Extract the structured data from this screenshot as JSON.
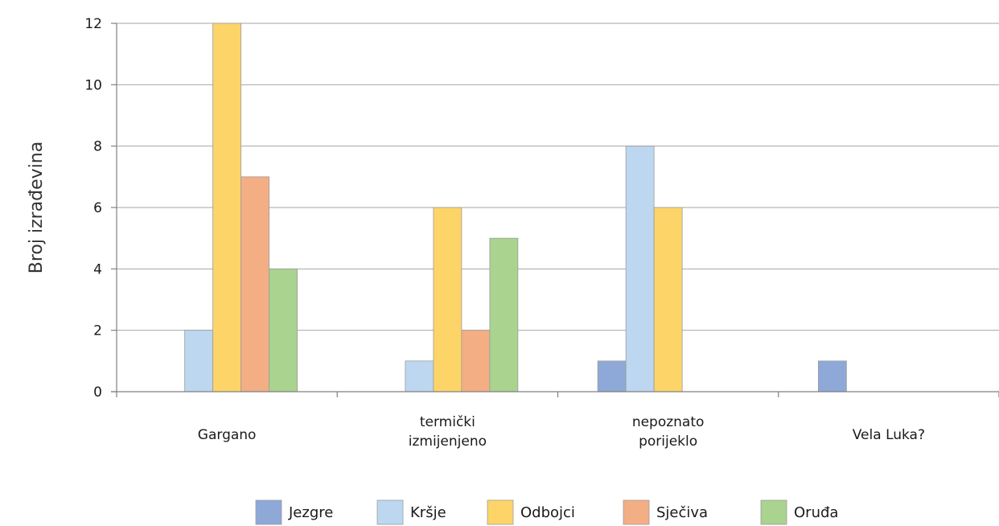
{
  "chart_data": {
    "type": "bar",
    "title": "",
    "xlabel": "",
    "ylabel": "Broj izrađevina",
    "ylim": [
      0,
      12
    ],
    "yticks": [
      0,
      2,
      4,
      6,
      8,
      10,
      12
    ],
    "grid": true,
    "legend_position": "bottom",
    "categories": [
      [
        "Gargano"
      ],
      [
        "termički",
        "izmijenjeno"
      ],
      [
        "nepoznato",
        "porijeklo"
      ],
      [
        "Vela Luka?"
      ]
    ],
    "series": [
      {
        "name": "Jezgre",
        "color": "#8ea9d8",
        "values": [
          0,
          0,
          1,
          1
        ]
      },
      {
        "name": "Kršje",
        "color": "#bcd7ef",
        "values": [
          2,
          1,
          8,
          0
        ]
      },
      {
        "name": "Odbojci",
        "color": "#fdd468",
        "values": [
          12,
          6,
          6,
          0
        ]
      },
      {
        "name": "Sječiva",
        "color": "#f4ae84",
        "values": [
          7,
          2,
          0,
          0
        ]
      },
      {
        "name": "Oruđa",
        "color": "#a9d38e",
        "values": [
          4,
          5,
          0,
          0
        ]
      }
    ]
  }
}
